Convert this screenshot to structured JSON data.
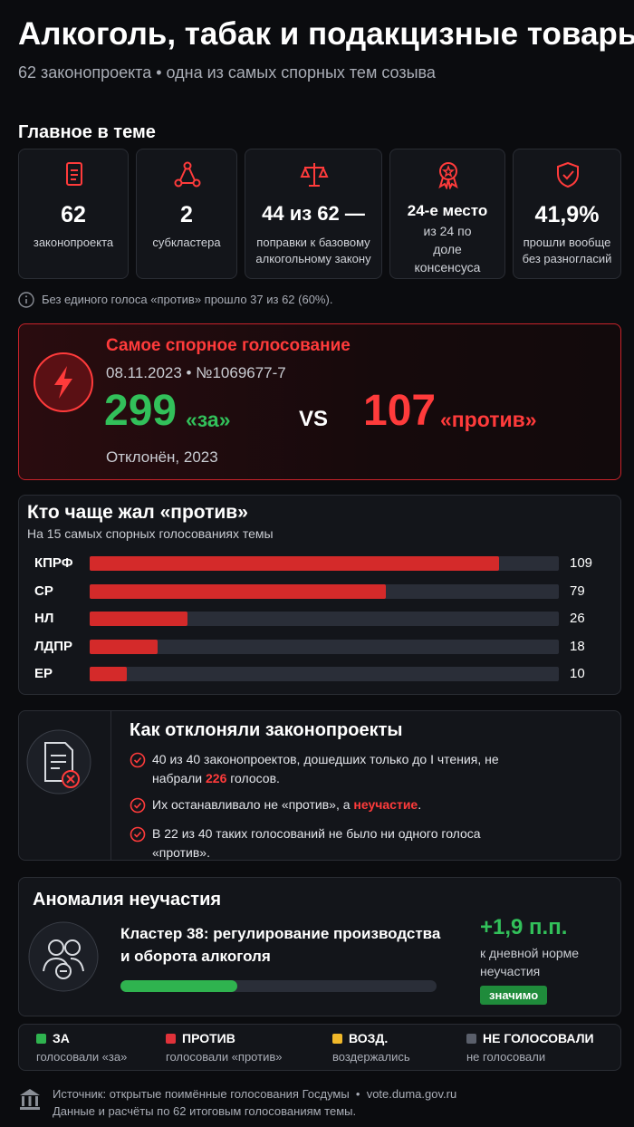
{
  "header": {
    "title": "Алкоголь, табак и подакцизные товары",
    "subtitle": "62 законопроекта • одна из самых спорных тем созыва"
  },
  "highlights": {
    "title": "Главное в теме",
    "cards": [
      {
        "value": "62",
        "label": "законопроекта"
      },
      {
        "value": "2",
        "label": "субкластера"
      },
      {
        "value": "44 из 62 —",
        "label": "поправки к базовому алкогольному закону"
      },
      {
        "value": "24-е место",
        "label": "из 24 по доле консенсуса"
      },
      {
        "value": "41,9%",
        "label": "прошли вообще без разногласий"
      }
    ],
    "note": "Без единого голоса «против» прошло 37 из 62 (60%)."
  },
  "contested": {
    "title": "Самое спорное голосование",
    "meta": "08.11.2023 • №1069677-7",
    "for_value": "299",
    "for_label": "«за»",
    "vs": "VS",
    "against_value": "107",
    "against_label": "«против»",
    "result": "Отклонён, 2023"
  },
  "chart_data": {
    "type": "bar",
    "title": "Кто чаще жал «против»",
    "subtitle": "На 15 самых спорных голосованиях темы",
    "categories": [
      "КПРФ",
      "СР",
      "НЛ",
      "ЛДПР",
      "ЕР"
    ],
    "values": [
      109,
      79,
      26,
      18,
      10
    ],
    "color": "#d42a2a",
    "xlim": [
      0,
      125
    ]
  },
  "rejection": {
    "title": "Как отклоняли законопроекты",
    "items": [
      [
        "40 из 40 законопроектов, дошедших только до I чтения, не набрали ",
        "226",
        " голосов."
      ],
      [
        "Их останавливало не «против», а ",
        "неучастие",
        "."
      ],
      [
        "В 22 из 40 таких голосований не было ни одного голоса «против»."
      ]
    ]
  },
  "anomaly": {
    "title": "Аномалия неучастия",
    "cluster": "Кластер 38: регулирование производства и оборота алкоголя",
    "delta": "+1,9 п.п.",
    "delta_label": "к дневной норме неучастия",
    "badge": "значимо"
  },
  "legend": [
    {
      "name": "ЗА",
      "desc": "голосовали «за»",
      "color": "#2fb34f"
    },
    {
      "name": "ПРОТИВ",
      "desc": "голосовали «против»",
      "color": "#e0323a"
    },
    {
      "name": "ВОЗД.",
      "desc": "воздержались",
      "color": "#f0b82a"
    },
    {
      "name": "НЕ ГОЛОСОВАЛИ",
      "desc": "не голосовали",
      "color": "#5a5f6b"
    }
  ],
  "footer": {
    "source": "Источник: открытые поимённые голосования Госдумы  •  vote.duma.gov.ru",
    "note": "Данные и расчёты по 62 итоговым голосованиям темы."
  }
}
